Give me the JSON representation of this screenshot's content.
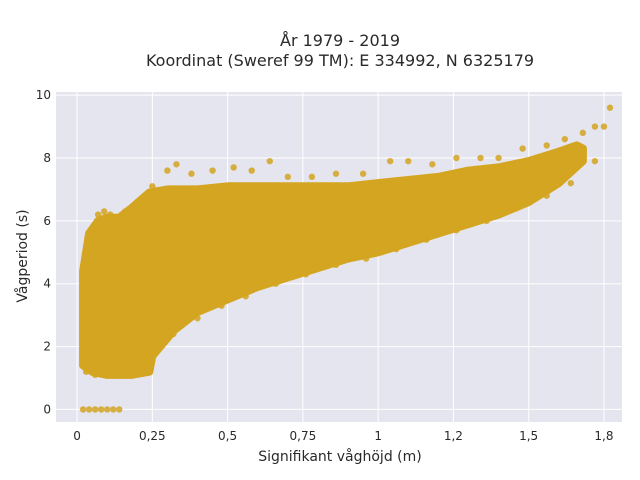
{
  "chart_data": {
    "type": "scatter",
    "title": "År 1979 - 2019",
    "subtitle": "Koordinat (Sweref 99 TM): E 334992, N 6325179",
    "xlabel": "Signifikant våghöjd (m)",
    "ylabel": "Vågperiod (s)",
    "xlim": [
      -0.07,
      1.81
    ],
    "ylim": [
      -0.4,
      10.1
    ],
    "x_ticks": [
      0,
      0.25,
      0.5,
      0.75,
      1,
      1.25,
      1.5,
      1.75
    ],
    "x_tick_labels": [
      "0",
      "0,25",
      "0,5",
      "0,75",
      "1",
      "1,2",
      "1,5",
      "1,8"
    ],
    "y_ticks": [
      0,
      2,
      4,
      6,
      8,
      10
    ],
    "y_tick_labels": [
      "0",
      "2",
      "4",
      "6",
      "8",
      "10"
    ],
    "grid": true,
    "marker_color": "#d4a520",
    "background_color": "#e5e5ef",
    "series": [
      {
        "points": [
          [
            0.02,
            0.0
          ],
          [
            0.04,
            0.0
          ],
          [
            0.06,
            0.0
          ],
          [
            0.08,
            0.0
          ],
          [
            0.1,
            0.0
          ],
          [
            0.12,
            0.0
          ],
          [
            0.14,
            0.0
          ],
          [
            0.02,
            1.4
          ],
          [
            0.03,
            2.9
          ],
          [
            0.04,
            4.4
          ],
          [
            0.05,
            5.7
          ],
          [
            0.07,
            6.2
          ],
          [
            0.09,
            6.3
          ],
          [
            0.11,
            6.2
          ],
          [
            0.13,
            6.1
          ],
          [
            0.16,
            6.3
          ],
          [
            0.2,
            6.6
          ],
          [
            0.25,
            7.1
          ],
          [
            0.3,
            7.6
          ],
          [
            0.33,
            7.8
          ],
          [
            0.38,
            7.5
          ],
          [
            0.45,
            7.6
          ],
          [
            0.52,
            7.7
          ],
          [
            0.58,
            7.6
          ],
          [
            0.64,
            7.9
          ],
          [
            0.7,
            7.4
          ],
          [
            0.78,
            7.4
          ],
          [
            0.86,
            7.5
          ],
          [
            0.95,
            7.5
          ],
          [
            1.04,
            7.9
          ],
          [
            1.1,
            7.9
          ],
          [
            1.18,
            7.8
          ],
          [
            1.26,
            8.0
          ],
          [
            1.34,
            8.0
          ],
          [
            1.4,
            8.0
          ],
          [
            1.48,
            8.3
          ],
          [
            1.56,
            8.4
          ],
          [
            1.62,
            8.6
          ],
          [
            1.68,
            8.8
          ],
          [
            1.72,
            9.0
          ],
          [
            1.75,
            9.0
          ],
          [
            1.77,
            9.6
          ],
          [
            0.03,
            1.2
          ],
          [
            0.06,
            1.1
          ],
          [
            0.1,
            1.1
          ],
          [
            0.14,
            1.2
          ],
          [
            0.18,
            1.2
          ],
          [
            0.22,
            1.3
          ],
          [
            0.26,
            1.8
          ],
          [
            0.32,
            2.4
          ],
          [
            0.4,
            2.9
          ],
          [
            0.48,
            3.3
          ],
          [
            0.56,
            3.6
          ],
          [
            0.66,
            4.0
          ],
          [
            0.76,
            4.3
          ],
          [
            0.86,
            4.6
          ],
          [
            0.96,
            4.8
          ],
          [
            1.06,
            5.1
          ],
          [
            1.16,
            5.4
          ],
          [
            1.26,
            5.7
          ],
          [
            1.36,
            6.0
          ],
          [
            1.46,
            6.4
          ],
          [
            1.56,
            6.8
          ],
          [
            1.64,
            7.2
          ],
          [
            1.72,
            7.9
          ]
        ]
      }
    ]
  }
}
